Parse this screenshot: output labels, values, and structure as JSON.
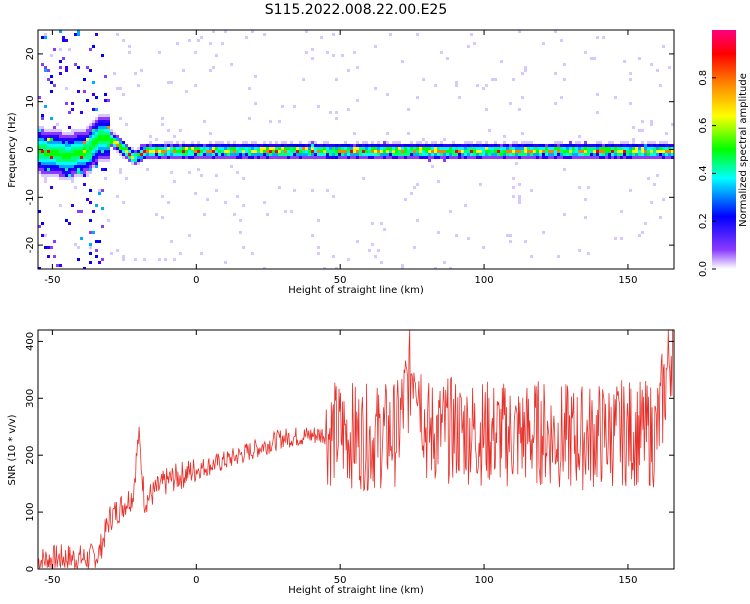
{
  "page_title": "S115.2022.008.22.00.E25",
  "chart_data": [
    {
      "type": "heatmap",
      "title": "S115.2022.008.22.00.E25",
      "xlabel": "Height of straight line (km)",
      "ylabel": "Frequency (Hz)",
      "xlim": [
        -55,
        166
      ],
      "ylim": [
        -25,
        25
      ],
      "xticks": [
        -50,
        0,
        50,
        100,
        150
      ],
      "yticks": [
        20,
        10,
        0,
        -10,
        -20
      ],
      "colorbar": {
        "label": "Normalized spectral amplitude",
        "range": [
          0,
          1
        ],
        "ticks": [
          "0.0",
          "0.2",
          "0.4",
          "0.6",
          "0.8"
        ],
        "colors": [
          "#ffffff",
          "#6a00ff",
          "#0000ff",
          "#00ffff",
          "#00ff00",
          "#ffff00",
          "#ff8000",
          "#ff0000",
          "#ff0080"
        ]
      },
      "ridge": {
        "description_points_x": [
          -55,
          -45,
          -38,
          -34,
          -30,
          -26,
          -22,
          -18,
          -10,
          0,
          10,
          30,
          60,
          100,
          130,
          166
        ],
        "frequency_y": [
          0,
          -1,
          0,
          3,
          2.5,
          0.5,
          -1.5,
          0,
          0,
          0,
          0,
          0,
          0,
          0,
          0,
          0
        ]
      }
    },
    {
      "type": "line",
      "xlabel": "Height of straight line (km)",
      "ylabel": "SNR (10 * v/v)",
      "xlim": [
        -55,
        166
      ],
      "ylim": [
        0,
        420
      ],
      "xticks": [
        -50,
        0,
        50,
        100,
        150
      ],
      "yticks": [
        0,
        100,
        200,
        300,
        400
      ],
      "color": "#e8302a",
      "series": [
        {
          "x": [
            -55,
            -45,
            -38,
            -34,
            -30,
            -26,
            -22,
            -20,
            -18,
            -10,
            0,
            10,
            20,
            30,
            40,
            50,
            60,
            70,
            76,
            80,
            90,
            100,
            110,
            120,
            130,
            140,
            150,
            160,
            166
          ],
          "y": [
            15,
            20,
            18,
            25,
            90,
            110,
            130,
            235,
            120,
            155,
            175,
            190,
            210,
            230,
            235,
            240,
            230,
            240,
            380,
            240,
            245,
            240,
            235,
            240,
            230,
            235,
            240,
            235,
            420
          ]
        }
      ]
    }
  ]
}
